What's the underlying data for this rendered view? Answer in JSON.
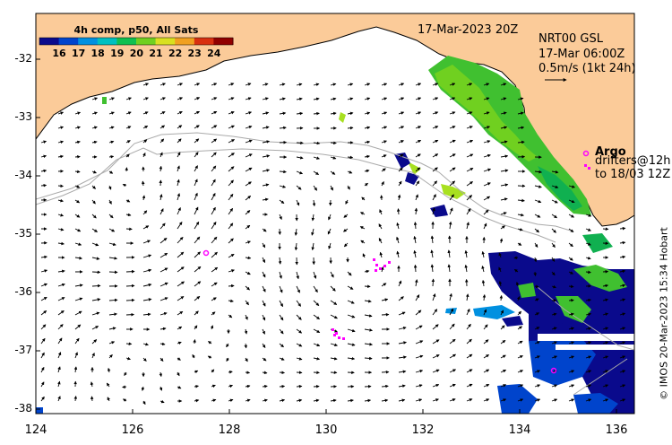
{
  "header": {
    "date": "17-Mar-2023 20Z",
    "product": "NRT00 GSL",
    "product_time": "17-Mar 06:00Z",
    "scale": "0.5m/s (1kt 24h)"
  },
  "colorbar": {
    "title": "4h comp, p50, All Sats",
    "ticks": [
      "16",
      "17",
      "18",
      "19",
      "20",
      "21",
      "22",
      "23",
      "24"
    ],
    "colors": [
      "#0a0a8c",
      "#0044cc",
      "#0090e0",
      "#00c0c0",
      "#10c050",
      "#70d020",
      "#d8e020",
      "#f0a020",
      "#d83010",
      "#900000"
    ]
  },
  "legend": {
    "argo_label": "Argo",
    "drifters_line1": "drifters@12h",
    "drifters_line2": "to 18/03 12Z"
  },
  "axes": {
    "y_ticks": [
      "-32",
      "-33",
      "-34",
      "-35",
      "-36",
      "-37",
      "-38"
    ],
    "x_ticks": [
      "124",
      "126",
      "128",
      "130",
      "132",
      "134",
      "136"
    ]
  },
  "credit": "© IMOS 20-Mar-2023 15:34 Hobart",
  "colors": {
    "land": "#fbcb99",
    "ocean": "#ffffff",
    "argo": "#ff00ff",
    "isobath": "#aaaaaa"
  }
}
